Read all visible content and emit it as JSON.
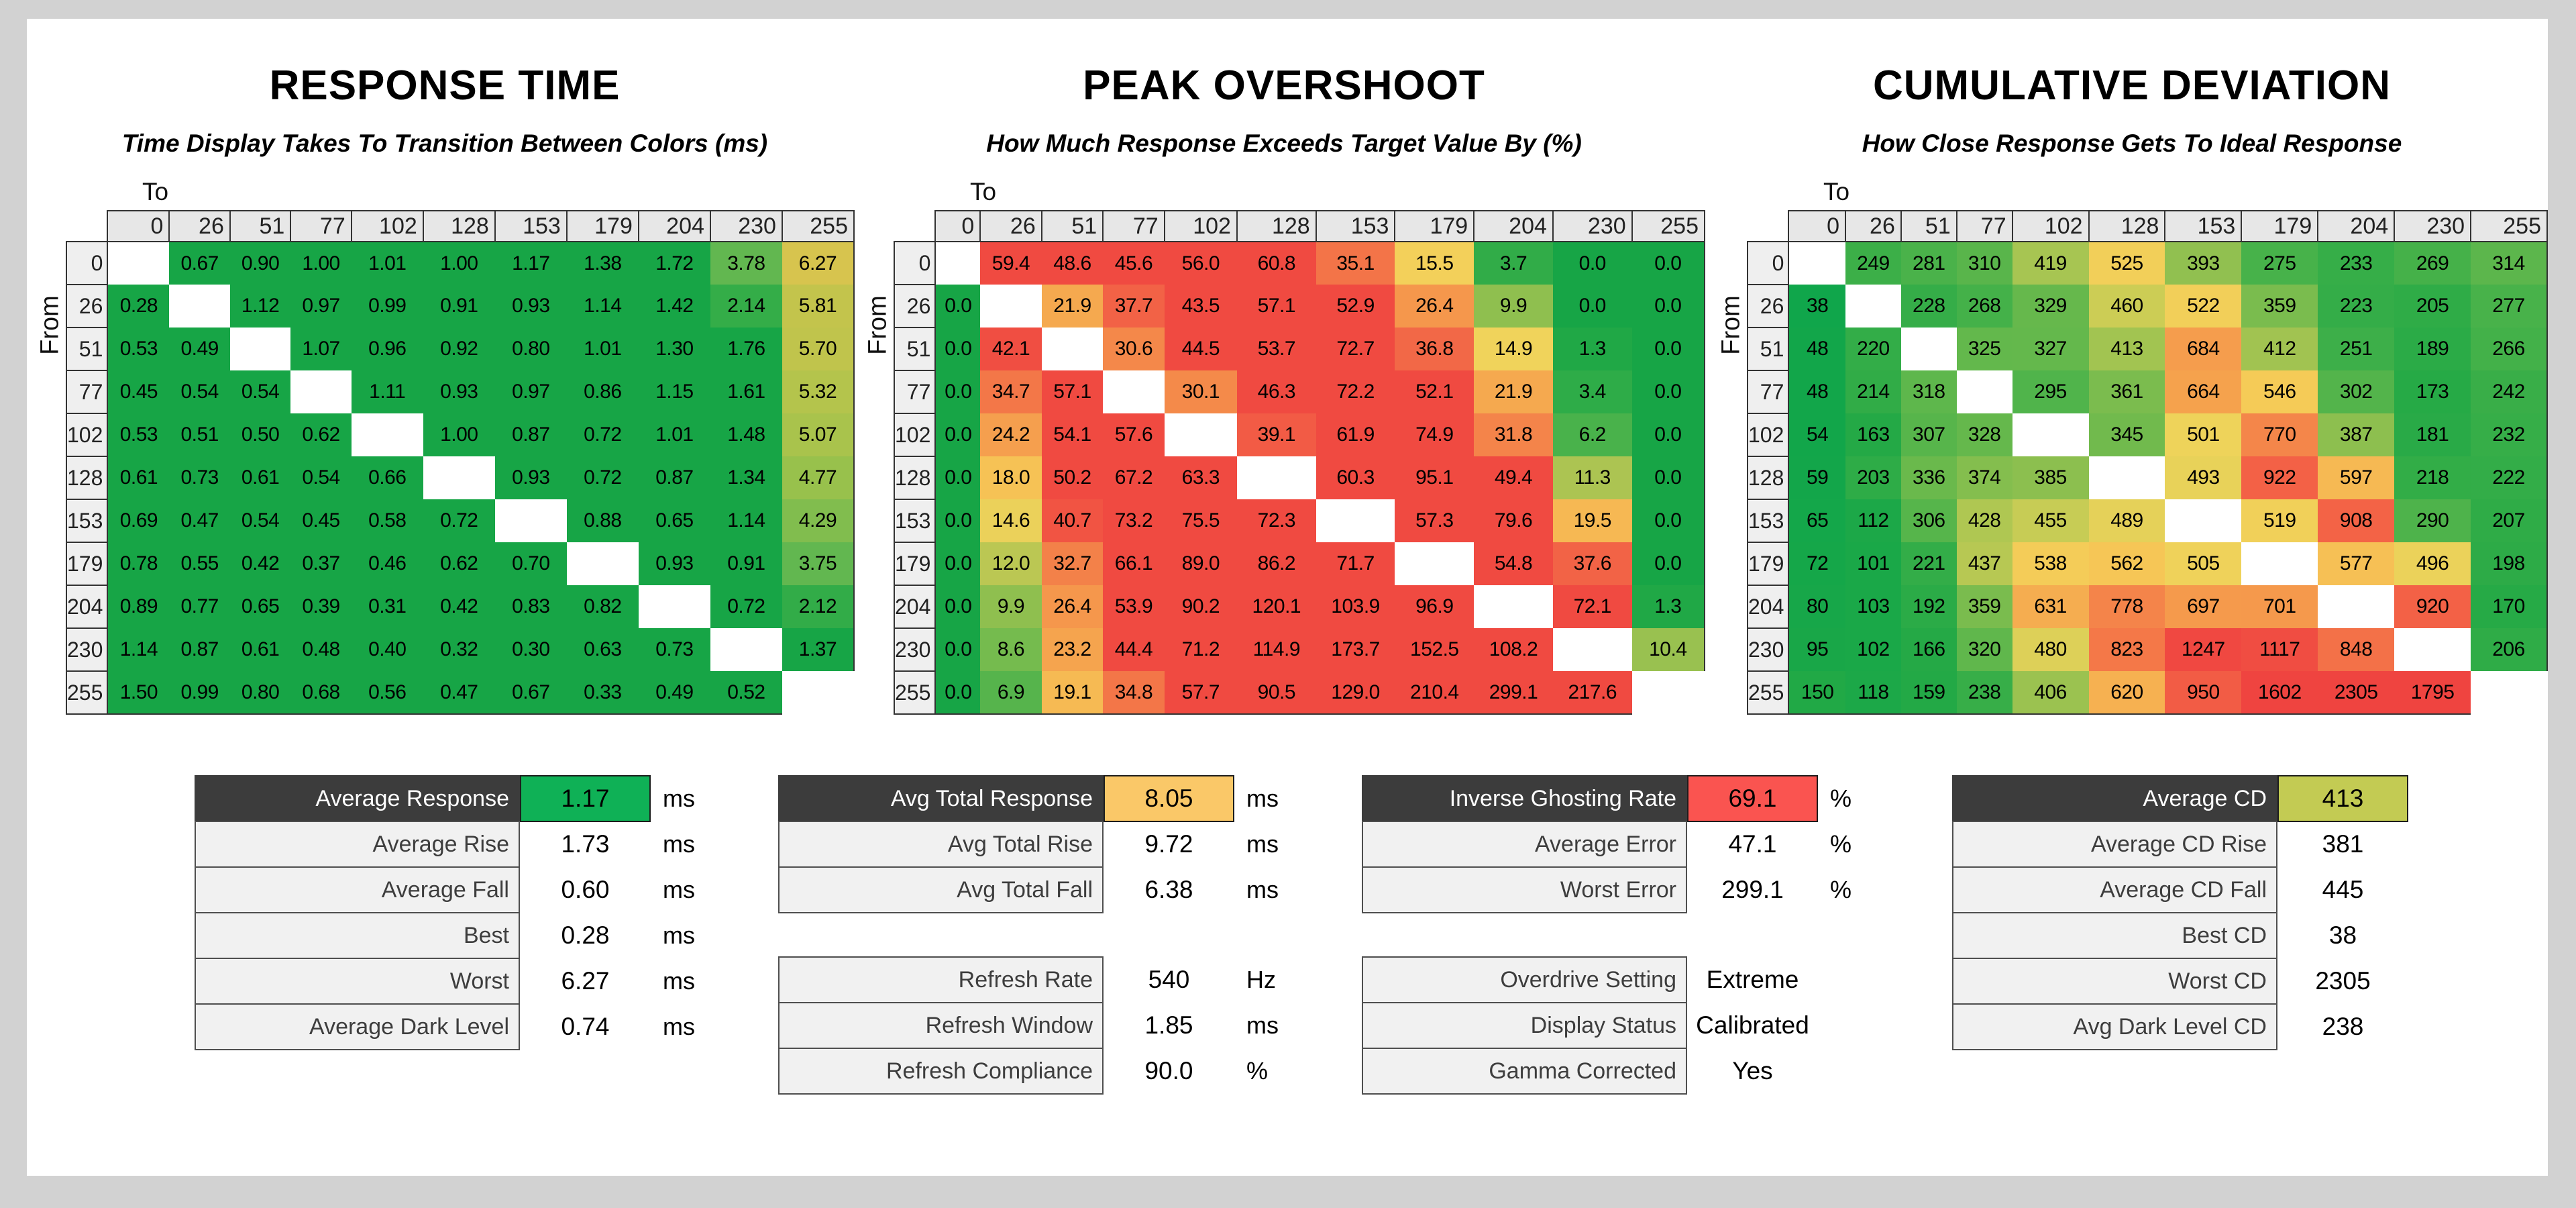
{
  "colors": {
    "page_bg": "#d2d2d2",
    "panel_bg": "#ffffff",
    "grid_line": "#333333",
    "tick_cell_bg": "#e7e7e7",
    "row_label_bg": "#efefef",
    "summary_label_bg": "#f1f1f1",
    "summary_header_bg": "#3c3c3c",
    "highlight_green": "#0fb156",
    "highlight_orange": "#fac868",
    "highlight_red": "#fa5450",
    "highlight_yellow_green": "#c3cb53"
  },
  "chart_data": [
    {
      "type": "heatmap",
      "id": "response_time",
      "title": "RESPONSE TIME",
      "subtitle": "Time Display Takes To Transition Between Colors (ms)",
      "x_label": "To",
      "y_label": "From",
      "categories": [
        0,
        26,
        51,
        77,
        102,
        128,
        153,
        179,
        204,
        230,
        255
      ],
      "unit": "ms",
      "colormap_stops": [
        [
          0,
          "#17a546"
        ],
        [
          1.8,
          "#17a546"
        ],
        [
          2.2,
          "#39ae48"
        ],
        [
          3.0,
          "#4db34c"
        ],
        [
          3.8,
          "#63b750"
        ],
        [
          4.3,
          "#82bd4e"
        ],
        [
          4.8,
          "#99c14c"
        ],
        [
          5.2,
          "#b0c44c"
        ],
        [
          5.8,
          "#c3c44c"
        ],
        [
          6.3,
          "#d8c44e"
        ]
      ],
      "values": [
        [
          null,
          "0.67",
          "0.90",
          "1.00",
          "1.01",
          "1.00",
          "1.17",
          "1.38",
          "1.72",
          "3.78",
          "6.27"
        ],
        [
          "0.28",
          null,
          "1.12",
          "0.97",
          "0.99",
          "0.91",
          "0.93",
          "1.14",
          "1.42",
          "2.14",
          "5.81"
        ],
        [
          "0.53",
          "0.49",
          null,
          "1.07",
          "0.96",
          "0.92",
          "0.80",
          "1.01",
          "1.30",
          "1.76",
          "5.70"
        ],
        [
          "0.45",
          "0.54",
          "0.54",
          null,
          "1.11",
          "0.93",
          "0.97",
          "0.86",
          "1.15",
          "1.61",
          "5.32"
        ],
        [
          "0.53",
          "0.51",
          "0.50",
          "0.62",
          null,
          "1.00",
          "0.87",
          "0.72",
          "1.01",
          "1.48",
          "5.07"
        ],
        [
          "0.61",
          "0.73",
          "0.61",
          "0.54",
          "0.66",
          null,
          "0.93",
          "0.72",
          "0.87",
          "1.34",
          "4.77"
        ],
        [
          "0.69",
          "0.47",
          "0.54",
          "0.45",
          "0.58",
          "0.72",
          null,
          "0.88",
          "0.65",
          "1.14",
          "4.29"
        ],
        [
          "0.78",
          "0.55",
          "0.42",
          "0.37",
          "0.46",
          "0.62",
          "0.70",
          null,
          "0.93",
          "0.91",
          "3.75"
        ],
        [
          "0.89",
          "0.77",
          "0.65",
          "0.39",
          "0.31",
          "0.42",
          "0.83",
          "0.82",
          null,
          "0.72",
          "2.12"
        ],
        [
          "1.14",
          "0.87",
          "0.61",
          "0.48",
          "0.40",
          "0.32",
          "0.30",
          "0.63",
          "0.73",
          null,
          "1.37"
        ],
        [
          "1.50",
          "0.99",
          "0.80",
          "0.68",
          "0.56",
          "0.47",
          "0.67",
          "0.33",
          "0.49",
          "0.52",
          null
        ]
      ]
    },
    {
      "type": "heatmap",
      "id": "peak_overshoot",
      "title": "PEAK OVERSHOOT",
      "subtitle": "How Much Response Exceeds Target Value By (%)",
      "x_label": "To",
      "y_label": "From",
      "categories": [
        0,
        26,
        51,
        77,
        102,
        128,
        153,
        179,
        204,
        230,
        255
      ],
      "unit": "%",
      "colormap_stops": [
        [
          0,
          "#17a546"
        ],
        [
          3,
          "#2bab47"
        ],
        [
          6,
          "#45b14b"
        ],
        [
          9,
          "#7cbc4e"
        ],
        [
          11,
          "#a6c351"
        ],
        [
          13,
          "#cfcb55"
        ],
        [
          15,
          "#f2d35b"
        ],
        [
          18,
          "#f6c255"
        ],
        [
          21,
          "#f5ad50"
        ],
        [
          25,
          "#f59c4d"
        ],
        [
          30,
          "#f48a4a"
        ],
        [
          34,
          "#f37c49"
        ],
        [
          38,
          "#f26046"
        ],
        [
          43,
          "#f04a41"
        ]
      ],
      "values": [
        [
          null,
          "59.4",
          "48.6",
          "45.6",
          "56.0",
          "60.8",
          "35.1",
          "15.5",
          "3.7",
          "0.0",
          "0.0"
        ],
        [
          "0.0",
          null,
          "21.9",
          "37.7",
          "43.5",
          "57.1",
          "52.9",
          "26.4",
          "9.9",
          "0.0",
          "0.0"
        ],
        [
          "0.0",
          "42.1",
          null,
          "30.6",
          "44.5",
          "53.7",
          "72.7",
          "36.8",
          "14.9",
          "1.3",
          "0.0"
        ],
        [
          "0.0",
          "34.7",
          "57.1",
          null,
          "30.1",
          "46.3",
          "72.2",
          "52.1",
          "21.9",
          "3.4",
          "0.0"
        ],
        [
          "0.0",
          "24.2",
          "54.1",
          "57.6",
          null,
          "39.1",
          "61.9",
          "74.9",
          "31.8",
          "6.2",
          "0.0"
        ],
        [
          "0.0",
          "18.0",
          "50.2",
          "67.2",
          "63.3",
          null,
          "60.3",
          "95.1",
          "49.4",
          "11.3",
          "0.0"
        ],
        [
          "0.0",
          "14.6",
          "40.7",
          "73.2",
          "75.5",
          "72.3",
          null,
          "57.3",
          "79.6",
          "19.5",
          "0.0"
        ],
        [
          "0.0",
          "12.0",
          "32.7",
          "66.1",
          "89.0",
          "86.2",
          "71.7",
          null,
          "54.8",
          "37.6",
          "0.0"
        ],
        [
          "0.0",
          "9.9",
          "26.4",
          "53.9",
          "90.2",
          "120.1",
          "103.9",
          "96.9",
          null,
          "72.1",
          "1.3"
        ],
        [
          "0.0",
          "8.6",
          "23.2",
          "44.4",
          "71.2",
          "114.9",
          "173.7",
          "152.5",
          "108.2",
          null,
          "10.4"
        ],
        [
          "0.0",
          "6.9",
          "19.1",
          "34.8",
          "57.7",
          "90.5",
          "129.0",
          "210.4",
          "299.1",
          "217.6",
          null
        ]
      ]
    },
    {
      "type": "heatmap",
      "id": "cumulative_deviation",
      "title": "CUMULATIVE DEVIATION",
      "subtitle": "How Close Response Gets To Ideal Response",
      "x_label": "To",
      "y_label": "From",
      "categories": [
        0,
        26,
        51,
        77,
        102,
        128,
        153,
        179,
        204,
        230,
        255
      ],
      "unit": "",
      "colormap_stops": [
        [
          0,
          "#0aa54c"
        ],
        [
          160,
          "#23a946"
        ],
        [
          240,
          "#38ae48"
        ],
        [
          300,
          "#52b44b"
        ],
        [
          350,
          "#74bb4d"
        ],
        [
          400,
          "#96c150"
        ],
        [
          450,
          "#c3cb54"
        ],
        [
          500,
          "#eed35a"
        ],
        [
          550,
          "#f6ca57"
        ],
        [
          600,
          "#f6b853"
        ],
        [
          660,
          "#f5a34d"
        ],
        [
          720,
          "#f5944c"
        ],
        [
          800,
          "#f47e49"
        ],
        [
          880,
          "#f36847"
        ],
        [
          980,
          "#f25744"
        ],
        [
          1150,
          "#f04a42"
        ],
        [
          1500,
          "#ef4440"
        ]
      ],
      "values": [
        [
          null,
          249,
          281,
          310,
          419,
          525,
          393,
          275,
          233,
          269,
          314
        ],
        [
          38,
          null,
          228,
          268,
          329,
          460,
          522,
          359,
          223,
          205,
          277
        ],
        [
          48,
          220,
          null,
          325,
          327,
          413,
          684,
          412,
          251,
          189,
          266
        ],
        [
          48,
          214,
          318,
          null,
          295,
          361,
          664,
          546,
          302,
          173,
          242
        ],
        [
          54,
          163,
          307,
          328,
          null,
          345,
          501,
          770,
          387,
          181,
          232
        ],
        [
          59,
          203,
          336,
          374,
          385,
          null,
          493,
          922,
          597,
          218,
          222
        ],
        [
          65,
          112,
          306,
          428,
          455,
          489,
          null,
          519,
          908,
          290,
          207
        ],
        [
          72,
          101,
          221,
          437,
          538,
          562,
          505,
          null,
          577,
          496,
          198
        ],
        [
          80,
          103,
          192,
          359,
          631,
          778,
          697,
          701,
          null,
          920,
          170
        ],
        [
          95,
          102,
          166,
          320,
          480,
          823,
          1247,
          1117,
          848,
          null,
          206
        ],
        [
          150,
          118,
          159,
          238,
          406,
          620,
          950,
          1602,
          2305,
          1795,
          null
        ]
      ]
    },
    {
      "type": "table",
      "id": "response_time_summary",
      "groups": [
        [
          {
            "label": "Average Response",
            "value": "1.17",
            "unit": "ms",
            "header": true,
            "value_bg": "#0fb156"
          },
          {
            "label": "Average Rise",
            "value": "1.73",
            "unit": "ms"
          },
          {
            "label": "Average Fall",
            "value": "0.60",
            "unit": "ms"
          },
          {
            "label": "Best",
            "value": "0.28",
            "unit": "ms"
          },
          {
            "label": "Worst",
            "value": "6.27",
            "unit": "ms"
          },
          {
            "label": "Average Dark Level",
            "value": "0.74",
            "unit": "ms"
          }
        ]
      ]
    },
    {
      "type": "table",
      "id": "total_response_summary",
      "groups": [
        [
          {
            "label": "Avg Total Response",
            "value": "8.05",
            "unit": "ms",
            "header": true,
            "value_bg": "#fac868"
          },
          {
            "label": "Avg Total Rise",
            "value": "9.72",
            "unit": "ms"
          },
          {
            "label": "Avg Total Fall",
            "value": "6.38",
            "unit": "ms"
          }
        ],
        [
          {
            "label": "Refresh Rate",
            "value": "540",
            "unit": "Hz"
          },
          {
            "label": "Refresh Window",
            "value": "1.85",
            "unit": "ms"
          },
          {
            "label": "Refresh Compliance",
            "value": "90.0",
            "unit": "%"
          }
        ]
      ]
    },
    {
      "type": "table",
      "id": "overshoot_summary",
      "groups": [
        [
          {
            "label": "Inverse Ghosting Rate",
            "value": "69.1",
            "unit": "%",
            "header": true,
            "value_bg": "#fa5450"
          },
          {
            "label": "Average Error",
            "value": "47.1",
            "unit": "%"
          },
          {
            "label": "Worst Error",
            "value": "299.1",
            "unit": "%"
          }
        ],
        [
          {
            "label": "Overdrive Setting",
            "value": "Extreme",
            "unit": ""
          },
          {
            "label": "Display Status",
            "value": "Calibrated",
            "unit": ""
          },
          {
            "label": "Gamma Corrected",
            "value": "Yes",
            "unit": ""
          }
        ]
      ]
    },
    {
      "type": "table",
      "id": "cumulative_deviation_summary",
      "groups": [
        [
          {
            "label": "Average CD",
            "value": "413",
            "unit": "",
            "header": true,
            "value_bg": "#c3cb53"
          },
          {
            "label": "Average CD Rise",
            "value": "381",
            "unit": ""
          },
          {
            "label": "Average CD Fall",
            "value": "445",
            "unit": ""
          },
          {
            "label": "Best CD",
            "value": "38",
            "unit": ""
          },
          {
            "label": "Worst CD",
            "value": "2305",
            "unit": ""
          },
          {
            "label": "Avg Dark Level CD",
            "value": "238",
            "unit": ""
          }
        ]
      ]
    }
  ]
}
